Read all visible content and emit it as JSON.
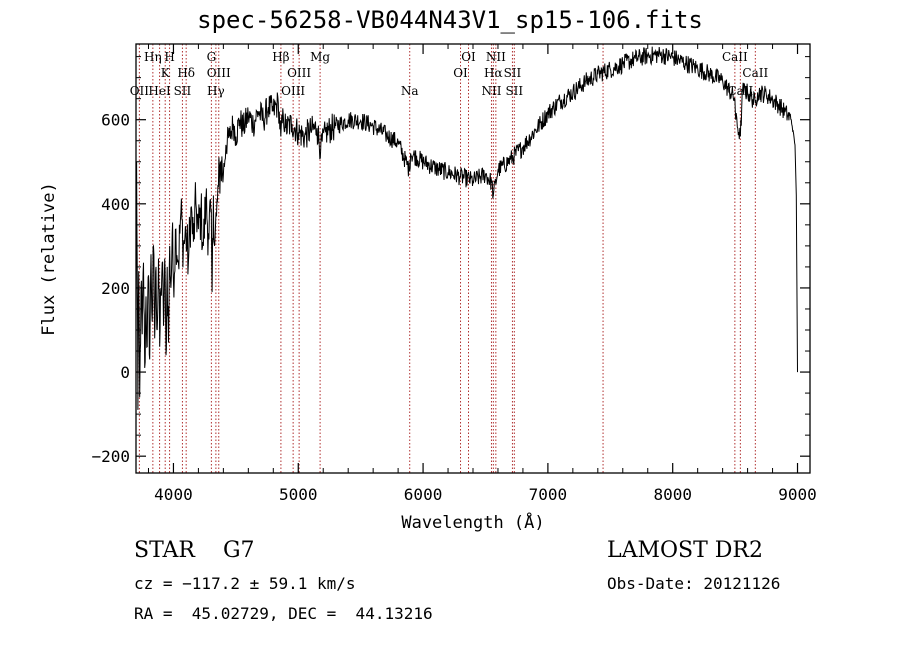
{
  "chart_data": {
    "type": "line",
    "title": "spec-56258-VB044N43V1_sp15-106.fits",
    "xlabel": "Wavelength (Å)",
    "ylabel": "Flux (relative)",
    "xlim": [
      3700,
      9100
    ],
    "ylim": [
      -240,
      780
    ],
    "xticks": [
      4000,
      5000,
      6000,
      7000,
      8000,
      9000
    ],
    "yticks": [
      -200,
      0,
      200,
      400,
      600
    ],
    "grid": false,
    "series": [
      {
        "points": [
          [
            3700,
            100
          ],
          [
            3705,
            500
          ],
          [
            3710,
            260
          ],
          [
            3715,
            -90
          ],
          [
            3722,
            240
          ],
          [
            3730,
            -60
          ],
          [
            3740,
            200
          ],
          [
            3750,
            90
          ],
          [
            3760,
            260
          ],
          [
            3770,
            10
          ],
          [
            3780,
            180
          ],
          [
            3790,
            60
          ],
          [
            3800,
            230
          ],
          [
            3810,
            30
          ],
          [
            3820,
            280
          ],
          [
            3830,
            120
          ],
          [
            3840,
            300
          ],
          [
            3850,
            80
          ],
          [
            3860,
            250
          ],
          [
            3870,
            100
          ],
          [
            3880,
            270
          ],
          [
            3890,
            60
          ],
          [
            3900,
            200
          ],
          [
            3910,
            260
          ],
          [
            3920,
            110
          ],
          [
            3930,
            270
          ],
          [
            3940,
            40
          ],
          [
            3950,
            250
          ],
          [
            3960,
            70
          ],
          [
            3970,
            300
          ],
          [
            3980,
            200
          ],
          [
            3990,
            330
          ],
          [
            4000,
            220
          ],
          [
            4020,
            340
          ],
          [
            4040,
            260
          ],
          [
            4060,
            380
          ],
          [
            4080,
            300
          ],
          [
            4100,
            330
          ],
          [
            4120,
            260
          ],
          [
            4140,
            390
          ],
          [
            4160,
            310
          ],
          [
            4180,
            400
          ],
          [
            4200,
            340
          ],
          [
            4220,
            380
          ],
          [
            4240,
            300
          ],
          [
            4260,
            410
          ],
          [
            4280,
            330
          ],
          [
            4300,
            380
          ],
          [
            4310,
            190
          ],
          [
            4320,
            420
          ],
          [
            4330,
            300
          ],
          [
            4345,
            370
          ],
          [
            4360,
            440
          ],
          [
            4380,
            500
          ],
          [
            4400,
            470
          ],
          [
            4420,
            540
          ],
          [
            4450,
            560
          ],
          [
            4480,
            590
          ],
          [
            4500,
            560
          ],
          [
            4530,
            600
          ],
          [
            4560,
            580
          ],
          [
            4600,
            610
          ],
          [
            4640,
            590
          ],
          [
            4680,
            620
          ],
          [
            4720,
            600
          ],
          [
            4760,
            630
          ],
          [
            4800,
            620
          ],
          [
            4840,
            640
          ],
          [
            4860,
            560
          ],
          [
            4880,
            610
          ],
          [
            4900,
            580
          ],
          [
            4950,
            590
          ],
          [
            5000,
            570
          ],
          [
            5050,
            560
          ],
          [
            5100,
            575
          ],
          [
            5150,
            580
          ],
          [
            5180,
            530
          ],
          [
            5220,
            570
          ],
          [
            5300,
            585
          ],
          [
            5400,
            600
          ],
          [
            5500,
            598
          ],
          [
            5600,
            585
          ],
          [
            5700,
            565
          ],
          [
            5800,
            545
          ],
          [
            5890,
            480
          ],
          [
            5900,
            520
          ],
          [
            6000,
            500
          ],
          [
            6100,
            485
          ],
          [
            6200,
            475
          ],
          [
            6300,
            465
          ],
          [
            6400,
            455
          ],
          [
            6500,
            470
          ],
          [
            6550,
            450
          ],
          [
            6563,
            420
          ],
          [
            6600,
            480
          ],
          [
            6700,
            505
          ],
          [
            6800,
            535
          ],
          [
            6900,
            575
          ],
          [
            7000,
            615
          ],
          [
            7100,
            645
          ],
          [
            7200,
            665
          ],
          [
            7300,
            690
          ],
          [
            7400,
            708
          ],
          [
            7500,
            720
          ],
          [
            7600,
            732
          ],
          [
            7700,
            745
          ],
          [
            7800,
            752
          ],
          [
            7900,
            755
          ],
          [
            8000,
            748
          ],
          [
            8100,
            735
          ],
          [
            8200,
            722
          ],
          [
            8300,
            708
          ],
          [
            8400,
            692
          ],
          [
            8498,
            650
          ],
          [
            8505,
            600
          ],
          [
            8542,
            560
          ],
          [
            8560,
            670
          ],
          [
            8600,
            665
          ],
          [
            8662,
            640
          ],
          [
            8680,
            665
          ],
          [
            8750,
            660
          ],
          [
            8800,
            648
          ],
          [
            8850,
            635
          ],
          [
            8900,
            618
          ],
          [
            8950,
            600
          ],
          [
            8980,
            540
          ],
          [
            8990,
            420
          ],
          [
            9000,
            0
          ]
        ]
      }
    ],
    "lines": [
      {
        "x": 3727,
        "label": "OII",
        "row": 3
      },
      {
        "x": 3835,
        "label": "Hη",
        "row": 1
      },
      {
        "x": 3889,
        "label": "HeI",
        "row": 3
      },
      {
        "x": 3934,
        "label": "K",
        "row": 2
      },
      {
        "x": 3969,
        "label": "H",
        "row": 1
      },
      {
        "x": 4072,
        "label": "SII",
        "row": 3
      },
      {
        "x": 4102,
        "label": "Hδ",
        "row": 2
      },
      {
        "x": 4304,
        "label": "G",
        "row": 1
      },
      {
        "x": 4340,
        "label": "Hγ",
        "row": 3
      },
      {
        "x": 4363,
        "label": "OIII",
        "row": 2
      },
      {
        "x": 4861,
        "label": "Hβ",
        "row": 1
      },
      {
        "x": 4959,
        "label": "OIII",
        "row": 3
      },
      {
        "x": 5007,
        "label": "OIII",
        "row": 2
      },
      {
        "x": 5175,
        "label": "Mg",
        "row": 1
      },
      {
        "x": 5893,
        "label": "Na",
        "row": 3
      },
      {
        "x": 6300,
        "label": "OI",
        "row": 2
      },
      {
        "x": 6364,
        "label": "OI",
        "row": 1
      },
      {
        "x": 6548,
        "label": "NII",
        "row": 3
      },
      {
        "x": 6563,
        "label": "Hα",
        "row": 2
      },
      {
        "x": 6583,
        "label": "NII",
        "row": 1
      },
      {
        "x": 6716,
        "label": "SII",
        "row": 2
      },
      {
        "x": 6731,
        "label": "SII",
        "row": 3
      },
      {
        "x": 7442,
        "label": "",
        "row": 2
      },
      {
        "x": 8498,
        "label": "CaII",
        "row": 1
      },
      {
        "x": 8542,
        "label": "CaII",
        "row": 3
      },
      {
        "x": 8662,
        "label": "CaII",
        "row": 2
      }
    ]
  },
  "info": {
    "object": "STAR    G7",
    "survey": "LAMOST DR2",
    "cz": "cz = −117.2 ± 59.1 km/s",
    "obs_date": "Obs-Date: 20121126",
    "radec": "RA =  45.02729, DEC =  44.13216"
  }
}
